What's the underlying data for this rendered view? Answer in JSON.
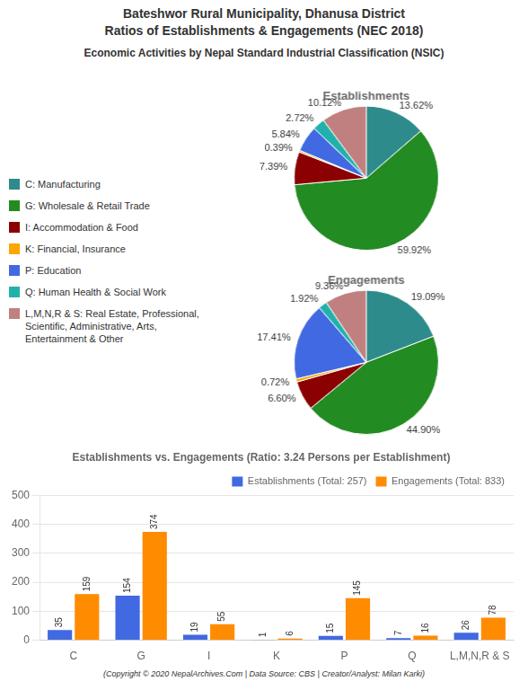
{
  "title": [
    "Bateshwor Rural Municipality, Dhanusa District",
    "Ratios of Establishments & Engagements (NEC 2018)"
  ],
  "subtitle": "Economic Activities by Nepal Standard Industrial Classification (NSIC)",
  "annotations": [
    "(Copyright © 2020 NepalArchives.Com | Data Source: CBS | Creator/Analyst: Milan Karki)"
  ],
  "chart_data": [
    {
      "type": "pie",
      "title": "Establishments",
      "categories": [
        "C: Manufacturing",
        "G: Wholesale & Retail Trade",
        "I: Accommodation & Food",
        "K: Financial, Insurance",
        "P: Education",
        "Q: Human Health & Social Work",
        "L,M,N,R & S: Real Estate, Professional,\nScientific, Administrative, Arts,\nEntertainment & Other"
      ],
      "values": [
        13.62,
        59.92,
        7.39,
        0.39,
        5.84,
        2.72,
        10.12
      ],
      "value_labels": [
        "13.62%",
        "59.92%",
        "7.39%",
        "0.39%",
        "5.84%",
        "2.72%",
        "10.12%"
      ],
      "colors": [
        "#2E8B8B",
        "#228B22",
        "#8B0000",
        "#FFA500",
        "#4169E1",
        "#20B2AA",
        "#C08080"
      ],
      "data_labels": true,
      "legend": "left"
    },
    {
      "type": "pie",
      "title": "Engagements",
      "categories": [
        "C: Manufacturing",
        "G: Wholesale & Retail Trade",
        "I: Accommodation & Food",
        "K: Financial, Insurance",
        "P: Education",
        "Q: Human Health & Social Work",
        "L,M,N,R & S: Real Estate, Professional,\nScientific, Administrative, Arts,\nEntertainment & Other"
      ],
      "values": [
        19.09,
        44.9,
        6.6,
        0.72,
        17.41,
        1.92,
        9.36
      ],
      "value_labels": [
        "19.09%",
        "44.90%",
        "6.60%",
        "0.72%",
        "17.41%",
        "1.92%",
        "9.36%"
      ],
      "colors": [
        "#2E8B8B",
        "#228B22",
        "#8B0000",
        "#FFA500",
        "#4169E1",
        "#20B2AA",
        "#C08080"
      ],
      "data_labels": true
    },
    {
      "type": "bar",
      "title": "Establishments vs. Engagements (Ratio: 3.24 Persons per Establishment)",
      "categories": [
        "C",
        "G",
        "I",
        "K",
        "P",
        "Q",
        "L,M,N,R & S"
      ],
      "series": [
        {
          "name": "Establishments (Total: 257)",
          "color": "#4169E1",
          "values": [
            35,
            154,
            19,
            1,
            15,
            7,
            26
          ]
        },
        {
          "name": "Engagements (Total: 833)",
          "color": "#FF8C00",
          "values": [
            159,
            374,
            55,
            6,
            145,
            16,
            78
          ]
        }
      ],
      "ylim": [
        0,
        500
      ],
      "yticks": [
        0,
        100,
        200,
        300,
        400,
        500
      ],
      "grid": true,
      "legend": "upper right",
      "data_labels": true
    }
  ]
}
